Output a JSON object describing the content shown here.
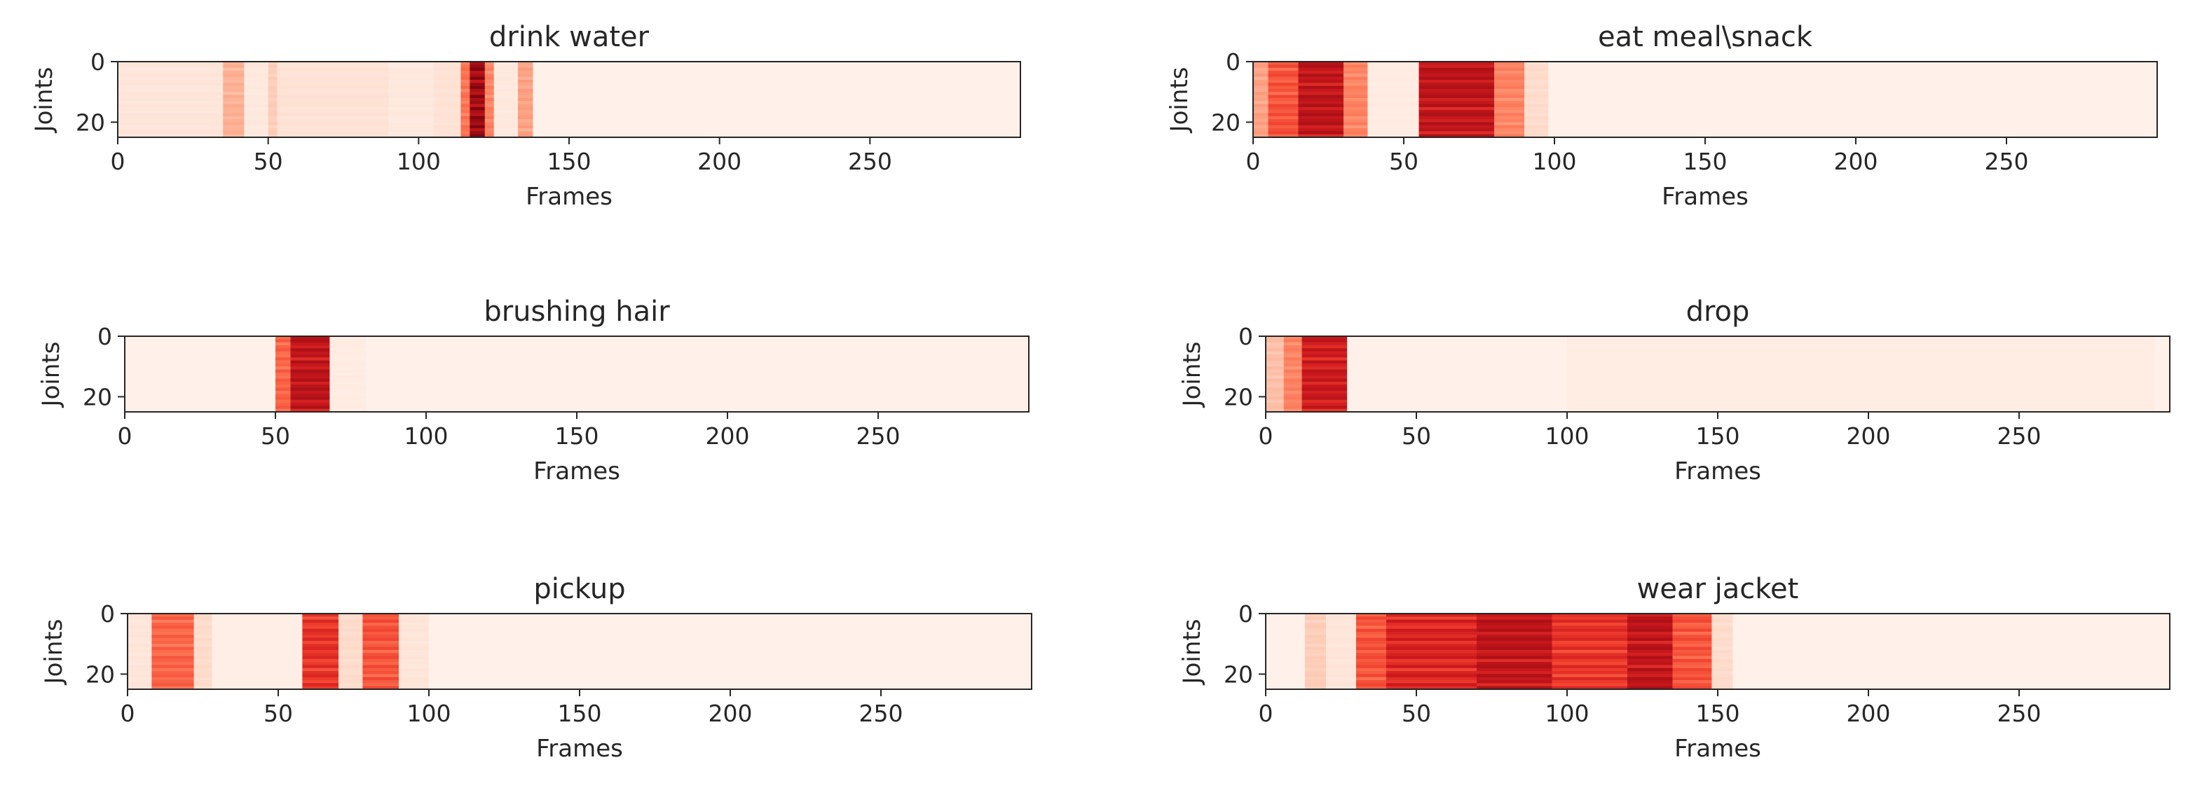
{
  "chart_data": [
    {
      "type": "heatmap",
      "title": "drink water",
      "xlabel": "Frames",
      "ylabel": "Joints",
      "xlim": [
        0,
        300
      ],
      "ylim": [
        25,
        0
      ],
      "xticks": [
        0,
        50,
        100,
        150,
        200,
        250
      ],
      "yticks": [
        0,
        20
      ],
      "colormap": "Reds",
      "bands": [
        {
          "x_start": 0,
          "x_end": 35,
          "intensity": 0.1
        },
        {
          "x_start": 35,
          "x_end": 42,
          "intensity": 0.3
        },
        {
          "x_start": 42,
          "x_end": 50,
          "intensity": 0.08
        },
        {
          "x_start": 50,
          "x_end": 53,
          "intensity": 0.2
        },
        {
          "x_start": 53,
          "x_end": 90,
          "intensity": 0.12
        },
        {
          "x_start": 90,
          "x_end": 105,
          "intensity": 0.08
        },
        {
          "x_start": 105,
          "x_end": 114,
          "intensity": 0.12
        },
        {
          "x_start": 114,
          "x_end": 117,
          "intensity": 0.5
        },
        {
          "x_start": 117,
          "x_end": 122,
          "intensity": 0.95
        },
        {
          "x_start": 122,
          "x_end": 125,
          "intensity": 0.45
        },
        {
          "x_start": 125,
          "x_end": 133,
          "intensity": 0.08
        },
        {
          "x_start": 133,
          "x_end": 138,
          "intensity": 0.35
        },
        {
          "x_start": 138,
          "x_end": 300,
          "intensity": 0.03
        }
      ]
    },
    {
      "type": "heatmap",
      "title": "eat meal\\snack",
      "xlabel": "Frames",
      "ylabel": "Joints",
      "xlim": [
        0,
        300
      ],
      "ylim": [
        25,
        0
      ],
      "xticks": [
        0,
        50,
        100,
        150,
        200,
        250
      ],
      "yticks": [
        0,
        20
      ],
      "colormap": "Reds",
      "bands": [
        {
          "x_start": 0,
          "x_end": 5,
          "intensity": 0.35
        },
        {
          "x_start": 5,
          "x_end": 15,
          "intensity": 0.6
        },
        {
          "x_start": 15,
          "x_end": 30,
          "intensity": 0.85
        },
        {
          "x_start": 30,
          "x_end": 38,
          "intensity": 0.45
        },
        {
          "x_start": 38,
          "x_end": 55,
          "intensity": 0.06
        },
        {
          "x_start": 55,
          "x_end": 80,
          "intensity": 0.85
        },
        {
          "x_start": 80,
          "x_end": 90,
          "intensity": 0.45
        },
        {
          "x_start": 90,
          "x_end": 98,
          "intensity": 0.15
        },
        {
          "x_start": 98,
          "x_end": 300,
          "intensity": 0.03
        }
      ]
    },
    {
      "type": "heatmap",
      "title": "brushing hair",
      "xlabel": "Frames",
      "ylabel": "Joints",
      "xlim": [
        0,
        300
      ],
      "ylim": [
        25,
        0
      ],
      "xticks": [
        0,
        50,
        100,
        150,
        200,
        250
      ],
      "yticks": [
        0,
        20
      ],
      "colormap": "Reds",
      "bands": [
        {
          "x_start": 0,
          "x_end": 50,
          "intensity": 0.03
        },
        {
          "x_start": 50,
          "x_end": 55,
          "intensity": 0.55
        },
        {
          "x_start": 55,
          "x_end": 68,
          "intensity": 0.85
        },
        {
          "x_start": 68,
          "x_end": 80,
          "intensity": 0.06
        },
        {
          "x_start": 80,
          "x_end": 300,
          "intensity": 0.03
        }
      ]
    },
    {
      "type": "heatmap",
      "title": "drop",
      "xlabel": "Frames",
      "ylabel": "Joints",
      "xlim": [
        0,
        300
      ],
      "ylim": [
        25,
        0
      ],
      "xticks": [
        0,
        50,
        100,
        150,
        200,
        250
      ],
      "yticks": [
        0,
        20
      ],
      "colormap": "Reds",
      "bands": [
        {
          "x_start": 0,
          "x_end": 6,
          "intensity": 0.25
        },
        {
          "x_start": 6,
          "x_end": 12,
          "intensity": 0.45
        },
        {
          "x_start": 12,
          "x_end": 27,
          "intensity": 0.8
        },
        {
          "x_start": 27,
          "x_end": 100,
          "intensity": 0.03
        },
        {
          "x_start": 100,
          "x_end": 295,
          "intensity": 0.05
        },
        {
          "x_start": 295,
          "x_end": 300,
          "intensity": 0.03
        }
      ]
    },
    {
      "type": "heatmap",
      "title": "pickup",
      "xlabel": "Frames",
      "ylabel": "Joints",
      "xlim": [
        0,
        300
      ],
      "ylim": [
        25,
        0
      ],
      "xticks": [
        0,
        50,
        100,
        150,
        200,
        250
      ],
      "yticks": [
        0,
        20
      ],
      "colormap": "Reds",
      "bands": [
        {
          "x_start": 0,
          "x_end": 8,
          "intensity": 0.1
        },
        {
          "x_start": 8,
          "x_end": 22,
          "intensity": 0.55
        },
        {
          "x_start": 22,
          "x_end": 28,
          "intensity": 0.15
        },
        {
          "x_start": 28,
          "x_end": 58,
          "intensity": 0.04
        },
        {
          "x_start": 58,
          "x_end": 70,
          "intensity": 0.7
        },
        {
          "x_start": 70,
          "x_end": 78,
          "intensity": 0.15
        },
        {
          "x_start": 78,
          "x_end": 90,
          "intensity": 0.6
        },
        {
          "x_start": 90,
          "x_end": 100,
          "intensity": 0.1
        },
        {
          "x_start": 100,
          "x_end": 300,
          "intensity": 0.03
        }
      ]
    },
    {
      "type": "heatmap",
      "title": "wear jacket",
      "xlabel": "Frames",
      "ylabel": "Joints",
      "xlim": [
        0,
        300
      ],
      "ylim": [
        25,
        0
      ],
      "xticks": [
        0,
        50,
        100,
        150,
        200,
        250
      ],
      "yticks": [
        0,
        20
      ],
      "colormap": "Reds",
      "bands": [
        {
          "x_start": 0,
          "x_end": 13,
          "intensity": 0.03
        },
        {
          "x_start": 13,
          "x_end": 20,
          "intensity": 0.2
        },
        {
          "x_start": 20,
          "x_end": 30,
          "intensity": 0.1
        },
        {
          "x_start": 30,
          "x_end": 40,
          "intensity": 0.6
        },
        {
          "x_start": 40,
          "x_end": 70,
          "intensity": 0.75
        },
        {
          "x_start": 70,
          "x_end": 95,
          "intensity": 0.85
        },
        {
          "x_start": 95,
          "x_end": 120,
          "intensity": 0.7
        },
        {
          "x_start": 120,
          "x_end": 135,
          "intensity": 0.85
        },
        {
          "x_start": 135,
          "x_end": 148,
          "intensity": 0.6
        },
        {
          "x_start": 148,
          "x_end": 155,
          "intensity": 0.15
        },
        {
          "x_start": 155,
          "x_end": 300,
          "intensity": 0.03
        }
      ]
    }
  ]
}
